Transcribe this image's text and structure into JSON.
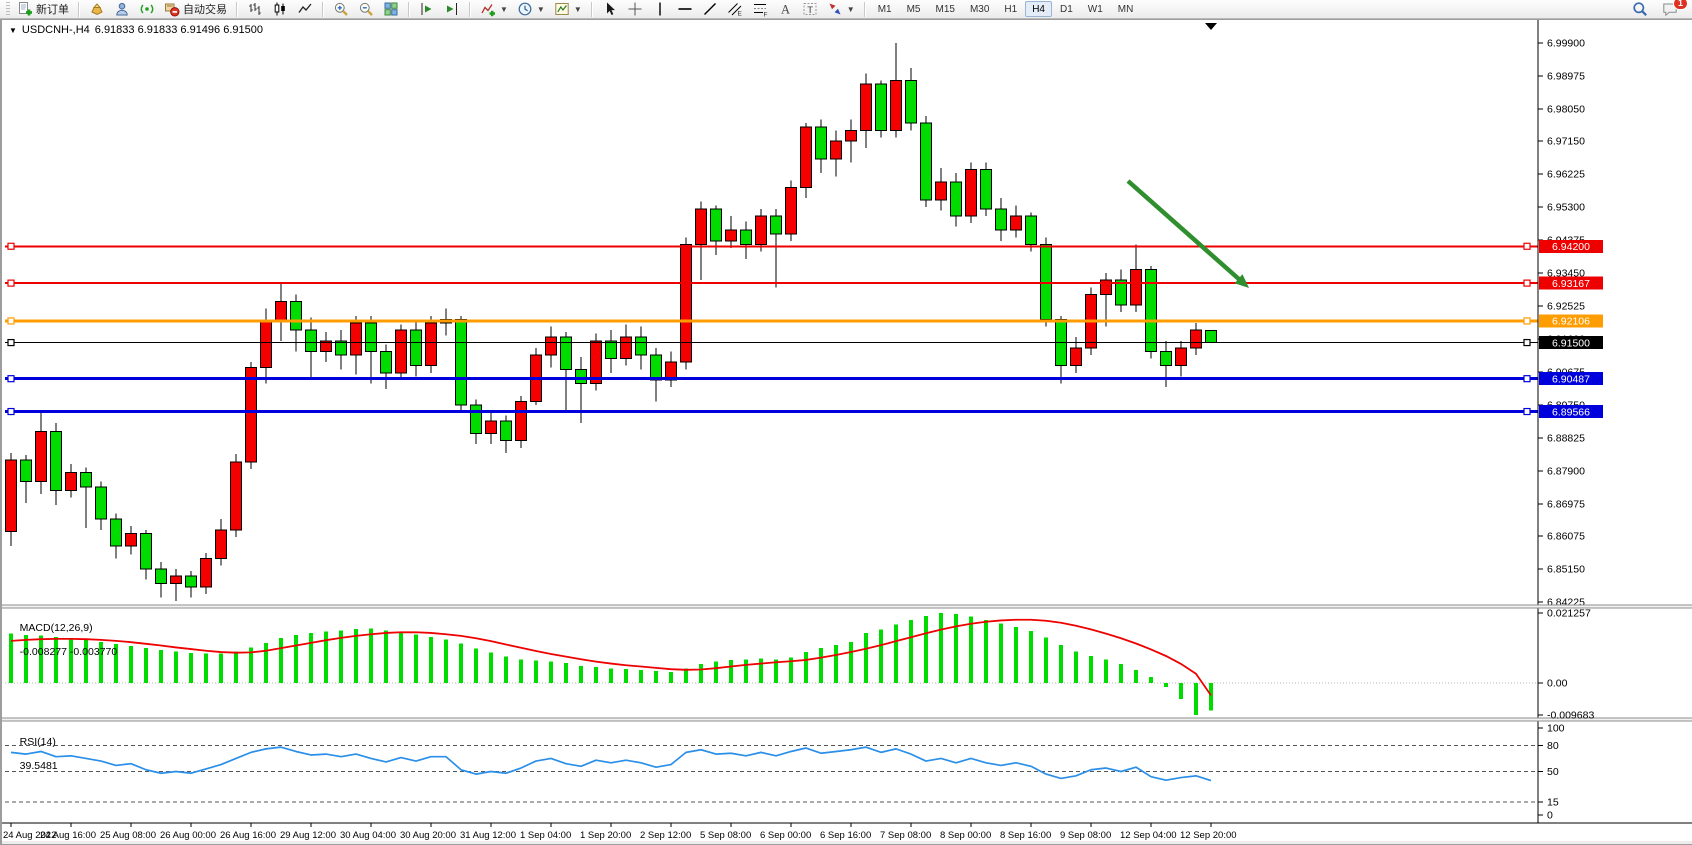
{
  "toolbar": {
    "new_order_label": "新订单",
    "auto_trading_label": "自动交易",
    "notification_count": "1",
    "buttons": [
      {
        "name": "new-order",
        "icon": "doc-plus",
        "label": "新订单"
      },
      {
        "sep": true
      },
      {
        "name": "styles",
        "icon": "gold"
      },
      {
        "name": "profiles",
        "icon": "person"
      },
      {
        "name": "sounds",
        "icon": "sonar"
      },
      {
        "name": "auto-trading",
        "icon": "autotrade",
        "label": "自动交易"
      },
      {
        "sep": true
      },
      {
        "name": "bar-chart",
        "icon": "bars"
      },
      {
        "name": "candle-chart",
        "icon": "candles"
      },
      {
        "name": "line-chart",
        "icon": "linech"
      },
      {
        "sep": true
      },
      {
        "name": "zoom-in",
        "icon": "zoomin"
      },
      {
        "name": "zoom-out",
        "icon": "zoomout"
      },
      {
        "name": "tile-windows",
        "icon": "tile"
      },
      {
        "sep": true
      },
      {
        "name": "auto-scroll",
        "icon": "autoscroll"
      },
      {
        "name": "chart-shift",
        "icon": "chartshift"
      },
      {
        "sep": true
      },
      {
        "name": "indicators",
        "icon": "indicators",
        "dropdown": true
      },
      {
        "name": "periods",
        "icon": "clock",
        "dropdown": true
      },
      {
        "name": "templates",
        "icon": "template",
        "dropdown": true
      },
      {
        "sep": true
      },
      {
        "name": "cursor",
        "icon": "cursor"
      },
      {
        "name": "crosshair",
        "icon": "crosshair"
      },
      {
        "name": "vertical-line",
        "icon": "vline"
      },
      {
        "name": "horizontal-line",
        "icon": "hline"
      },
      {
        "name": "trendline",
        "icon": "trend"
      },
      {
        "name": "equidistant-channel",
        "icon": "channel"
      },
      {
        "name": "fibonacci",
        "icon": "fibo"
      },
      {
        "name": "text",
        "icon": "textA"
      },
      {
        "name": "text-label",
        "icon": "textT"
      },
      {
        "name": "arrows",
        "icon": "arrows",
        "dropdown": true
      },
      {
        "sep": true
      }
    ],
    "timeframes": [
      "M1",
      "M5",
      "M15",
      "M30",
      "H1",
      "H4",
      "D1",
      "W1",
      "MN"
    ],
    "active_timeframe": "H4"
  },
  "chart": {
    "title_marker": "▼",
    "title_symbol": "USDCNH-,H4",
    "title_quote": "6.91833 6.91833 6.91496 6.91500"
  },
  "chart_data": {
    "type": "candlestick",
    "symbol": "USDCNH-",
    "timeframe": "H4",
    "current_bar": {
      "open": 6.91833,
      "high": 6.91833,
      "low": 6.91496,
      "close": 6.915
    },
    "color_convention": {
      "up": "#f40000",
      "down": "#00dc00",
      "wick": "#000000",
      "note": "chinese-red-up-green-down"
    },
    "price_axis": {
      "range_max": 6.999,
      "range_min": 6.84225,
      "ticks": [
        "6.99900",
        "6.98975",
        "6.98050",
        "6.97150",
        "6.96225",
        "6.95300",
        "6.94375",
        "6.93450",
        "6.92525",
        "6.91600",
        "6.90675",
        "6.89750",
        "6.88825",
        "6.87900",
        "6.86975",
        "6.86075",
        "6.85150",
        "6.84225"
      ]
    },
    "hlines": [
      {
        "price": 6.942,
        "label": "6.94200",
        "color": "#ee0000",
        "width": 2
      },
      {
        "price": 6.93167,
        "label": "6.93167",
        "color": "#ee0000",
        "width": 2
      },
      {
        "price": 6.92106,
        "label": "6.92106",
        "color": "#ff9c00",
        "width": 3
      },
      {
        "price": 6.915,
        "label": "6.91500",
        "color": "#000000",
        "width": 1
      },
      {
        "price": 6.90487,
        "label": "6.90487",
        "color": "#0000dd",
        "width": 3
      },
      {
        "price": 6.89566,
        "label": "6.89566",
        "color": "#0000dd",
        "width": 3
      }
    ],
    "x_labels": [
      "24 Aug 2022",
      "24 Aug 16:00",
      "25 Aug 08:00",
      "26 Aug 00:00",
      "26 Aug 16:00",
      "29 Aug 12:00",
      "30 Aug 04:00",
      "30 Aug 20:00",
      "31 Aug 12:00",
      "1 Sep 04:00",
      "1 Sep 20:00",
      "2 Sep 12:00",
      "5 Sep 08:00",
      "6 Sep 00:00",
      "6 Sep 16:00",
      "7 Sep 08:00",
      "8 Sep 00:00",
      "8 Sep 16:00",
      "9 Sep 08:00",
      "12 Sep 04:00",
      "12 Sep 20:00"
    ],
    "bars_per_x_label": 4,
    "candles": [
      [
        6.862,
        6.884,
        6.858,
        6.882
      ],
      [
        6.882,
        6.8835,
        6.87,
        6.876
      ],
      [
        6.876,
        6.8955,
        6.8725,
        6.89
      ],
      [
        6.89,
        6.8925,
        6.8695,
        6.8735
      ],
      [
        6.8735,
        6.881,
        6.8715,
        6.8785
      ],
      [
        6.8785,
        6.88,
        6.863,
        6.8745
      ],
      [
        6.8745,
        6.876,
        6.8625,
        6.8655
      ],
      [
        6.8655,
        6.867,
        6.8545,
        6.858
      ],
      [
        6.858,
        6.8635,
        6.8555,
        6.8615
      ],
      [
        6.8615,
        6.8625,
        6.8485,
        6.8515
      ],
      [
        6.8515,
        6.8535,
        6.8435,
        6.8475
      ],
      [
        6.8475,
        6.8515,
        6.8425,
        6.8495
      ],
      [
        6.8495,
        6.851,
        6.8435,
        6.8465
      ],
      [
        6.8465,
        6.856,
        6.8445,
        6.8545
      ],
      [
        6.8545,
        6.8655,
        6.8525,
        6.8625
      ],
      [
        6.8625,
        6.8838,
        6.8605,
        6.8815
      ],
      [
        6.8815,
        6.9095,
        6.8795,
        6.908
      ],
      [
        6.908,
        6.9245,
        6.9035,
        6.921
      ],
      [
        6.921,
        6.932,
        6.9155,
        6.9265
      ],
      [
        6.9265,
        6.9285,
        6.9125,
        6.9185
      ],
      [
        6.9185,
        6.922,
        6.9045,
        6.9125
      ],
      [
        6.9125,
        6.918,
        6.9095,
        6.9155
      ],
      [
        6.9155,
        6.9185,
        6.9075,
        6.9115
      ],
      [
        6.9115,
        6.9225,
        6.906,
        6.9205
      ],
      [
        6.9205,
        6.9225,
        6.9035,
        6.9125
      ],
      [
        6.9125,
        6.9145,
        6.902,
        6.9065
      ],
      [
        6.9065,
        6.92,
        6.9045,
        6.9185
      ],
      [
        6.9185,
        6.9215,
        6.9055,
        6.9085
      ],
      [
        6.9085,
        6.9225,
        6.9065,
        6.9205
      ],
      [
        6.9205,
        6.9245,
        6.917,
        6.9215
      ],
      [
        6.9215,
        6.9225,
        6.8955,
        6.8975
      ],
      [
        6.8975,
        6.899,
        6.8865,
        6.8895
      ],
      [
        6.8895,
        6.8955,
        6.8865,
        6.893
      ],
      [
        6.893,
        6.8945,
        6.884,
        6.8875
      ],
      [
        6.8875,
        6.9,
        6.8855,
        6.8985
      ],
      [
        6.8985,
        6.9135,
        6.8975,
        6.9115
      ],
      [
        6.9115,
        6.9195,
        6.908,
        6.9165
      ],
      [
        6.9165,
        6.918,
        6.896,
        6.9075
      ],
      [
        6.9075,
        6.911,
        6.8925,
        6.9035
      ],
      [
        6.9035,
        6.9175,
        6.9015,
        6.9155
      ],
      [
        6.9155,
        6.9185,
        6.9065,
        6.9105
      ],
      [
        6.9105,
        6.92,
        6.9085,
        6.9165
      ],
      [
        6.9165,
        6.9195,
        6.9075,
        6.9115
      ],
      [
        6.9115,
        6.9135,
        6.8985,
        6.9045
      ],
      [
        6.9045,
        6.9125,
        6.9025,
        6.9095
      ],
      [
        6.9095,
        6.9445,
        6.9075,
        6.9425
      ],
      [
        6.9425,
        6.9545,
        6.9325,
        6.9525
      ],
      [
        6.9525,
        6.9535,
        6.9395,
        6.9435
      ],
      [
        6.9435,
        6.9505,
        6.9415,
        6.9465
      ],
      [
        6.9465,
        6.949,
        6.9385,
        6.9425
      ],
      [
        6.9425,
        6.9525,
        6.9405,
        6.9505
      ],
      [
        6.9505,
        6.9525,
        6.9305,
        6.9455
      ],
      [
        6.9455,
        6.9605,
        6.9435,
        6.9585
      ],
      [
        6.9585,
        6.9765,
        6.9555,
        6.9755
      ],
      [
        6.9755,
        6.9775,
        6.9625,
        6.9665
      ],
      [
        6.9665,
        6.9745,
        6.9615,
        6.9715
      ],
      [
        6.9715,
        6.9775,
        6.9655,
        6.9745
      ],
      [
        6.9745,
        6.9905,
        6.9695,
        6.9875
      ],
      [
        6.9875,
        6.9885,
        6.9725,
        6.9745
      ],
      [
        6.9745,
        6.999,
        6.9725,
        6.9885
      ],
      [
        6.9885,
        6.992,
        6.9745,
        6.9765
      ],
      [
        6.9765,
        6.9785,
        6.953,
        6.955
      ],
      [
        6.955,
        6.964,
        6.952,
        6.96
      ],
      [
        6.96,
        6.9625,
        6.9475,
        6.9505
      ],
      [
        6.9505,
        6.9655,
        6.9485,
        6.9635
      ],
      [
        6.9635,
        6.9655,
        6.9505,
        6.9525
      ],
      [
        6.9525,
        6.9555,
        6.9435,
        6.9465
      ],
      [
        6.9465,
        6.9535,
        6.9445,
        6.9505
      ],
      [
        6.9505,
        6.9515,
        6.9405,
        6.9425
      ],
      [
        6.9425,
        6.9445,
        6.9195,
        6.9215
      ],
      [
        6.9215,
        6.9225,
        6.9035,
        6.9085
      ],
      [
        6.9085,
        6.9165,
        6.9065,
        6.9135
      ],
      [
        6.9135,
        6.9305,
        6.9115,
        6.9285
      ],
      [
        6.9285,
        6.9345,
        6.9195,
        6.9325
      ],
      [
        6.9325,
        6.9355,
        6.9235,
        6.9255
      ],
      [
        6.9255,
        6.9425,
        6.9235,
        6.9355
      ],
      [
        6.9355,
        6.9365,
        6.9105,
        6.9125
      ],
      [
        6.9125,
        6.9155,
        6.9025,
        6.9085
      ],
      [
        6.9085,
        6.9155,
        6.9055,
        6.9135
      ],
      [
        6.9135,
        6.9205,
        6.9115,
        6.9185
      ],
      [
        6.91833,
        6.91833,
        6.91496,
        6.915
      ]
    ],
    "annotation_arrow": {
      "x1_page": 1127,
      "y1_page": 181,
      "x2_page": 1248,
      "y2_page": 288,
      "color": "#2f8f2f"
    },
    "macd": {
      "label_text": "MACD(12,26,9)",
      "values_text": "-0.008277 -0.003770",
      "main_value": -0.008277,
      "signal_value": -0.00377,
      "axis_labels": [
        "0.021257",
        "0.00",
        "-0.009683"
      ],
      "axis_values": [
        0.021257,
        0,
        -0.009683
      ],
      "histogram_color": "#00dc00",
      "signal_color": "#ee0000",
      "histogram": [
        0.015,
        0.0146,
        0.0144,
        0.014,
        0.0136,
        0.0131,
        0.0125,
        0.0118,
        0.0112,
        0.0106,
        0.01,
        0.0095,
        0.0091,
        0.0089,
        0.009,
        0.0096,
        0.0108,
        0.0122,
        0.0136,
        0.0146,
        0.0152,
        0.0157,
        0.016,
        0.0164,
        0.0165,
        0.016,
        0.0155,
        0.0148,
        0.014,
        0.0132,
        0.012,
        0.0105,
        0.0092,
        0.008,
        0.0072,
        0.0068,
        0.0066,
        0.006,
        0.0052,
        0.0048,
        0.0044,
        0.0042,
        0.004,
        0.0036,
        0.0034,
        0.0044,
        0.0058,
        0.0066,
        0.007,
        0.0072,
        0.0074,
        0.0072,
        0.0078,
        0.0094,
        0.0106,
        0.0115,
        0.0124,
        0.0152,
        0.0163,
        0.0178,
        0.0192,
        0.0204,
        0.0212,
        0.021,
        0.0202,
        0.0192,
        0.018,
        0.017,
        0.0158,
        0.0138,
        0.0116,
        0.0096,
        0.0082,
        0.0072,
        0.0058,
        0.004,
        0.0018,
        -0.0012,
        -0.0048,
        -0.009683,
        -0.008277
      ],
      "signal": [
        0.0128,
        0.0131,
        0.0133,
        0.0134,
        0.0134,
        0.0133,
        0.0131,
        0.0128,
        0.0124,
        0.0119,
        0.0114,
        0.0108,
        0.0103,
        0.0098,
        0.0094,
        0.0092,
        0.0093,
        0.0098,
        0.0106,
        0.0114,
        0.0122,
        0.013,
        0.0137,
        0.0143,
        0.0148,
        0.0152,
        0.0154,
        0.0154,
        0.0152,
        0.0148,
        0.0143,
        0.0136,
        0.0127,
        0.0117,
        0.0107,
        0.0097,
        0.0088,
        0.008,
        0.0072,
        0.0065,
        0.0059,
        0.0054,
        0.005,
        0.0046,
        0.0042,
        0.004,
        0.0041,
        0.0045,
        0.005,
        0.0055,
        0.0059,
        0.0063,
        0.0066,
        0.007,
        0.0077,
        0.0085,
        0.0094,
        0.0104,
        0.0115,
        0.0127,
        0.0139,
        0.0151,
        0.0162,
        0.0172,
        0.018,
        0.0186,
        0.019,
        0.0192,
        0.0192,
        0.0189,
        0.0183,
        0.0174,
        0.0163,
        0.015,
        0.0136,
        0.012,
        0.0102,
        0.0082,
        0.0058,
        0.0028,
        -0.00377
      ]
    },
    "rsi": {
      "label_text": "RSI(14)",
      "value_text": "39.5481",
      "value": 39.5481,
      "line_color": "#2a8fe8",
      "levels": [
        80,
        50,
        15
      ],
      "axis_labels": [
        "100",
        "80",
        "50",
        "15",
        "0"
      ],
      "axis_values": [
        100,
        80,
        50,
        15,
        0
      ],
      "values": [
        72,
        70,
        73,
        67,
        68,
        65,
        62,
        57,
        59,
        52,
        48,
        50,
        48,
        53,
        58,
        65,
        72,
        76,
        78,
        73,
        69,
        70,
        67,
        70,
        65,
        61,
        66,
        62,
        67,
        67,
        52,
        47,
        50,
        48,
        54,
        62,
        65,
        59,
        56,
        63,
        60,
        63,
        60,
        55,
        58,
        72,
        75,
        70,
        71,
        68,
        72,
        68,
        73,
        77,
        71,
        73,
        75,
        78,
        72,
        76,
        70,
        62,
        65,
        60,
        65,
        60,
        57,
        60,
        56,
        47,
        42,
        45,
        52,
        54,
        50,
        55,
        44,
        40,
        43,
        45,
        39.5481
      ]
    }
  }
}
